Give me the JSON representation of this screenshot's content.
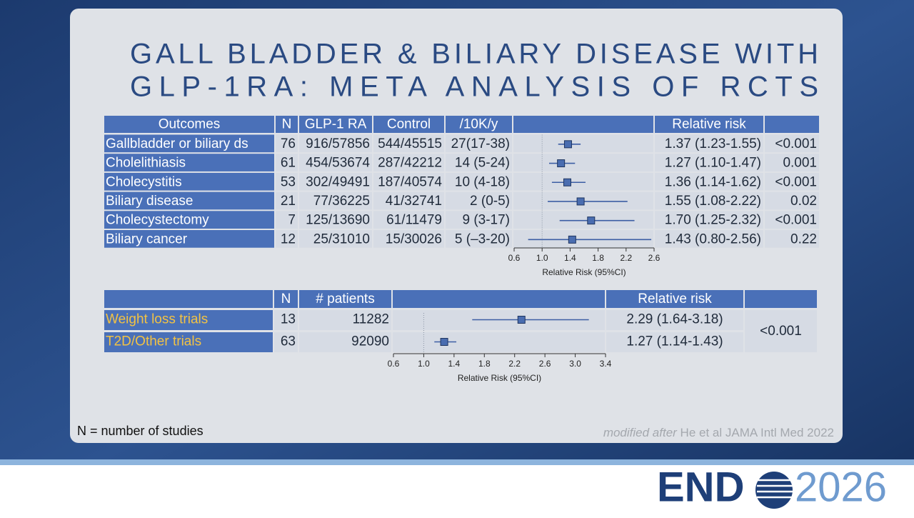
{
  "title_lines": [
    "GALL BLADDER & BILIARY DISEASE WITH",
    "GLP-1RA: META ANALYSIS OF RCTS"
  ],
  "table1": {
    "headers": [
      "Outcomes",
      "N",
      "GLP-1 RA",
      "Control",
      "/10K/y",
      "Relative risk"
    ],
    "rows": [
      [
        "Gallbladder or biliary ds",
        "76",
        "916/57856",
        "544/45515",
        "27(17-38)",
        "1.37 (1.23-1.55)",
        "<0.001"
      ],
      [
        "Cholelithiasis",
        "61",
        "454/53674",
        "287/42212",
        "14 (5-24)",
        "1.27 (1.10-1.47)",
        "0.001"
      ],
      [
        "Cholecystitis",
        "53",
        "302/49491",
        "187/40574",
        "10 (4-18)",
        "1.36 (1.14-1.62)",
        "<0.001"
      ],
      [
        "Biliary disease",
        "21",
        "77/36225",
        "41/32741",
        "2 (0-5)",
        "1.55 (1.08-2.22)",
        "0.02"
      ],
      [
        "Cholecystectomy",
        "7",
        "125/13690",
        "61/11479",
        "9 (3-17)",
        "1.70 (1.25-2.32)",
        "<0.001"
      ],
      [
        "Biliary cancer",
        "12",
        "25/31010",
        "15/30026",
        "5 (–3-20)",
        "1.43 (0.80-2.56)",
        "0.22"
      ]
    ],
    "forest": {
      "xlim": [
        0.6,
        2.6
      ],
      "xticks": [
        0.6,
        {
          "value": 1,
          "label": "1.0"
        },
        1.4,
        1.8,
        2.2,
        2.6
      ],
      "axis_label": "Relative Risk (95%CI)",
      "estimates": [
        [
          1.37,
          1.23,
          1.55
        ],
        [
          1.27,
          1.1,
          1.47
        ],
        [
          1.36,
          1.14,
          1.62
        ],
        [
          1.55,
          1.08,
          2.22
        ],
        [
          1.7,
          1.25,
          2.32
        ],
        [
          1.43,
          0.8,
          2.56
        ]
      ]
    }
  },
  "table2": {
    "headers": [
      "N",
      "# patients",
      "Relative risk"
    ],
    "rows": [
      [
        "Weight loss trials",
        "13",
        "11282",
        "2.29 (1.64-3.18)"
      ],
      [
        "T2D/Other trials",
        "63",
        "92090",
        "1.27 (1.14-1.43)"
      ]
    ],
    "p_value": "<0.001",
    "forest": {
      "xlim": [
        0.6,
        3.4
      ],
      "xticks": [
        0.6,
        {
          "value": 1,
          "label": "1.0"
        },
        1.4,
        1.8,
        2.2,
        2.6,
        {
          "value": 3,
          "label": "3.0"
        },
        3.4
      ],
      "axis_label": "Relative Risk (95%CI)",
      "estimates": [
        [
          2.29,
          1.64,
          3.18
        ],
        [
          1.27,
          1.14,
          1.43
        ]
      ]
    }
  },
  "footnote": "N = number of studies",
  "source_italic": "modified after",
  "source_rest": "He et al JAMA Intl Med 2022",
  "logo": {
    "left": "END",
    "right": "2026"
  }
}
